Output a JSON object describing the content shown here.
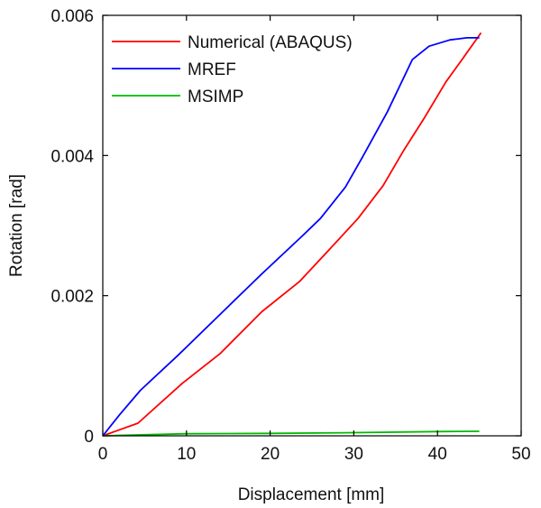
{
  "chart_data": {
    "type": "line",
    "xlabel": "Displacement [mm]",
    "ylabel": "Rotation [rad]",
    "xlim": [
      0,
      50
    ],
    "ylim": [
      0,
      0.006
    ],
    "x_ticks": [
      0,
      10,
      20,
      30,
      40,
      50
    ],
    "x_tick_labels": [
      "0",
      "10",
      "20",
      "30",
      "40",
      "50"
    ],
    "y_ticks": [
      0,
      0.002,
      0.004,
      0.006
    ],
    "y_tick_labels": [
      "0",
      "0.002",
      "0.004",
      "0.006"
    ],
    "grid": false,
    "legend_position": "top-left",
    "series": [
      {
        "name": "Numerical (ABAQUS)",
        "color": "#ff0000",
        "x": [
          0,
          4.2,
          9.5,
          14,
          19,
          23.5,
          27,
          30.5,
          33.5,
          36,
          38.5,
          41,
          43,
          45.2
        ],
        "y": [
          0,
          0.00018,
          0.00075,
          0.00117,
          0.00177,
          0.0022,
          0.00265,
          0.0031,
          0.00357,
          0.00408,
          0.00455,
          0.00505,
          0.00538,
          0.00575
        ]
      },
      {
        "name": "MREF",
        "color": "#0000ff",
        "x": [
          0,
          2,
          4.5,
          9,
          14,
          19,
          24,
          26,
          29,
          31,
          34,
          37,
          39,
          41.5,
          43.5,
          45
        ],
        "y": [
          0,
          0.0003,
          0.00065,
          0.00115,
          0.00173,
          0.00231,
          0.00287,
          0.0031,
          0.00355,
          0.00397,
          0.00462,
          0.00537,
          0.00556,
          0.00565,
          0.00568,
          0.00568
        ]
      },
      {
        "name": "MSIMP",
        "color": "#00bb00",
        "x": [
          0,
          10,
          20,
          30,
          40,
          45
        ],
        "y": [
          0,
          3e-05,
          3.5e-05,
          4.5e-05,
          6e-05,
          6.5e-05
        ]
      }
    ]
  }
}
